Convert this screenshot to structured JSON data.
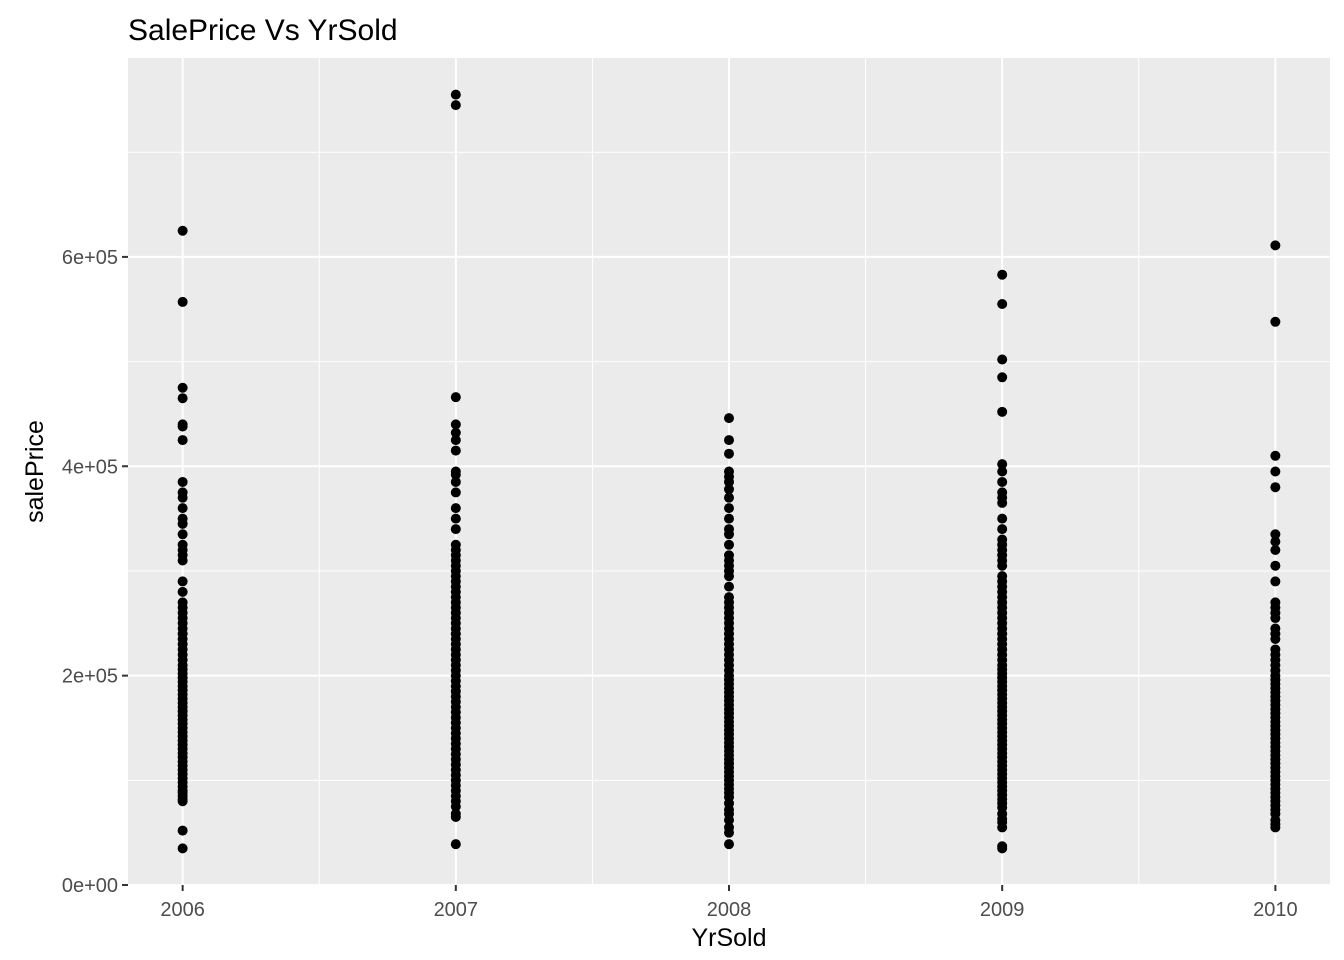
{
  "chart_data": {
    "type": "scatter",
    "title": "SalePrice Vs YrSold",
    "xlabel": "YrSold",
    "ylabel": "salePrice",
    "x_ticks": [
      2006,
      2007,
      2008,
      2009,
      2010
    ],
    "x_tick_labels": [
      "2006",
      "2007",
      "2008",
      "2009",
      "2010"
    ],
    "xlim": [
      2005.8,
      2010.2
    ],
    "y_ticks": [
      0,
      200000,
      400000,
      600000
    ],
    "y_tick_labels": [
      "0e+00",
      "2e+05",
      "4e+05",
      "6e+05"
    ],
    "ylim": [
      0,
      790000
    ],
    "grid": true,
    "legend": "none",
    "colors": {
      "panel": "#ebebeb",
      "grid": "#ffffff",
      "point": "#000000",
      "tick": "#333333"
    },
    "points_by_year": [
      {
        "x": 2006,
        "y": [
          35000,
          52000,
          80000,
          82000,
          85000,
          88000,
          90000,
          94000,
          98000,
          102000,
          106000,
          110000,
          114000,
          118000,
          122000,
          126000,
          130000,
          134000,
          138000,
          142000,
          146000,
          150000,
          154000,
          158000,
          162000,
          166000,
          170000,
          174000,
          178000,
          182000,
          186000,
          190000,
          194000,
          198000,
          202000,
          206000,
          210000,
          215000,
          220000,
          225000,
          230000,
          235000,
          240000,
          245000,
          250000,
          255000,
          260000,
          265000,
          270000,
          280000,
          290000,
          310000,
          315000,
          320000,
          325000,
          335000,
          345000,
          350000,
          360000,
          370000,
          375000,
          385000,
          425000,
          438000,
          440000,
          465000,
          475000,
          557000,
          625000
        ]
      },
      {
        "x": 2007,
        "y": [
          39000,
          65000,
          68000,
          75000,
          80000,
          85000,
          90000,
          95000,
          100000,
          105000,
          110000,
          115000,
          120000,
          125000,
          130000,
          135000,
          140000,
          145000,
          150000,
          155000,
          160000,
          165000,
          170000,
          175000,
          180000,
          185000,
          190000,
          195000,
          200000,
          205000,
          210000,
          215000,
          220000,
          225000,
          230000,
          235000,
          240000,
          245000,
          250000,
          255000,
          260000,
          265000,
          270000,
          275000,
          280000,
          285000,
          290000,
          295000,
          300000,
          305000,
          310000,
          315000,
          320000,
          325000,
          340000,
          350000,
          360000,
          375000,
          385000,
          392000,
          395000,
          415000,
          425000,
          432000,
          440000,
          466000,
          745000,
          755000
        ]
      },
      {
        "x": 2008,
        "y": [
          39000,
          50000,
          55000,
          62000,
          68000,
          72000,
          78000,
          84000,
          88000,
          92000,
          96000,
          100000,
          104000,
          108000,
          112000,
          116000,
          120000,
          124000,
          128000,
          132000,
          136000,
          140000,
          144000,
          148000,
          152000,
          156000,
          160000,
          164000,
          168000,
          172000,
          176000,
          180000,
          184000,
          188000,
          192000,
          196000,
          200000,
          205000,
          210000,
          215000,
          220000,
          225000,
          230000,
          235000,
          240000,
          245000,
          250000,
          255000,
          260000,
          265000,
          270000,
          275000,
          285000,
          295000,
          300000,
          305000,
          310000,
          315000,
          325000,
          335000,
          340000,
          350000,
          360000,
          370000,
          378000,
          385000,
          390000,
          395000,
          412000,
          425000,
          446000
        ]
      },
      {
        "x": 2009,
        "y": [
          35000,
          37000,
          55000,
          60000,
          63000,
          68000,
          74000,
          78000,
          82000,
          86000,
          90000,
          94000,
          98000,
          102000,
          106000,
          110000,
          114000,
          118000,
          122000,
          126000,
          130000,
          134000,
          138000,
          142000,
          146000,
          150000,
          154000,
          158000,
          162000,
          166000,
          170000,
          174000,
          178000,
          182000,
          186000,
          190000,
          194000,
          198000,
          202000,
          206000,
          210000,
          215000,
          220000,
          225000,
          230000,
          235000,
          240000,
          245000,
          250000,
          255000,
          260000,
          265000,
          270000,
          275000,
          280000,
          285000,
          290000,
          295000,
          305000,
          310000,
          315000,
          320000,
          325000,
          330000,
          340000,
          350000,
          365000,
          370000,
          375000,
          385000,
          395000,
          402000,
          452000,
          485000,
          502000,
          555000,
          583000
        ]
      },
      {
        "x": 2010,
        "y": [
          55000,
          58000,
          62000,
          68000,
          72000,
          76000,
          80000,
          84000,
          88000,
          92000,
          96000,
          100000,
          104000,
          108000,
          112000,
          116000,
          120000,
          124000,
          128000,
          132000,
          136000,
          140000,
          144000,
          148000,
          152000,
          156000,
          160000,
          164000,
          168000,
          172000,
          176000,
          180000,
          184000,
          188000,
          192000,
          196000,
          200000,
          205000,
          210000,
          215000,
          220000,
          225000,
          235000,
          240000,
          245000,
          255000,
          260000,
          265000,
          270000,
          290000,
          305000,
          320000,
          328000,
          335000,
          380000,
          395000,
          410000,
          538000,
          611000
        ]
      }
    ]
  }
}
